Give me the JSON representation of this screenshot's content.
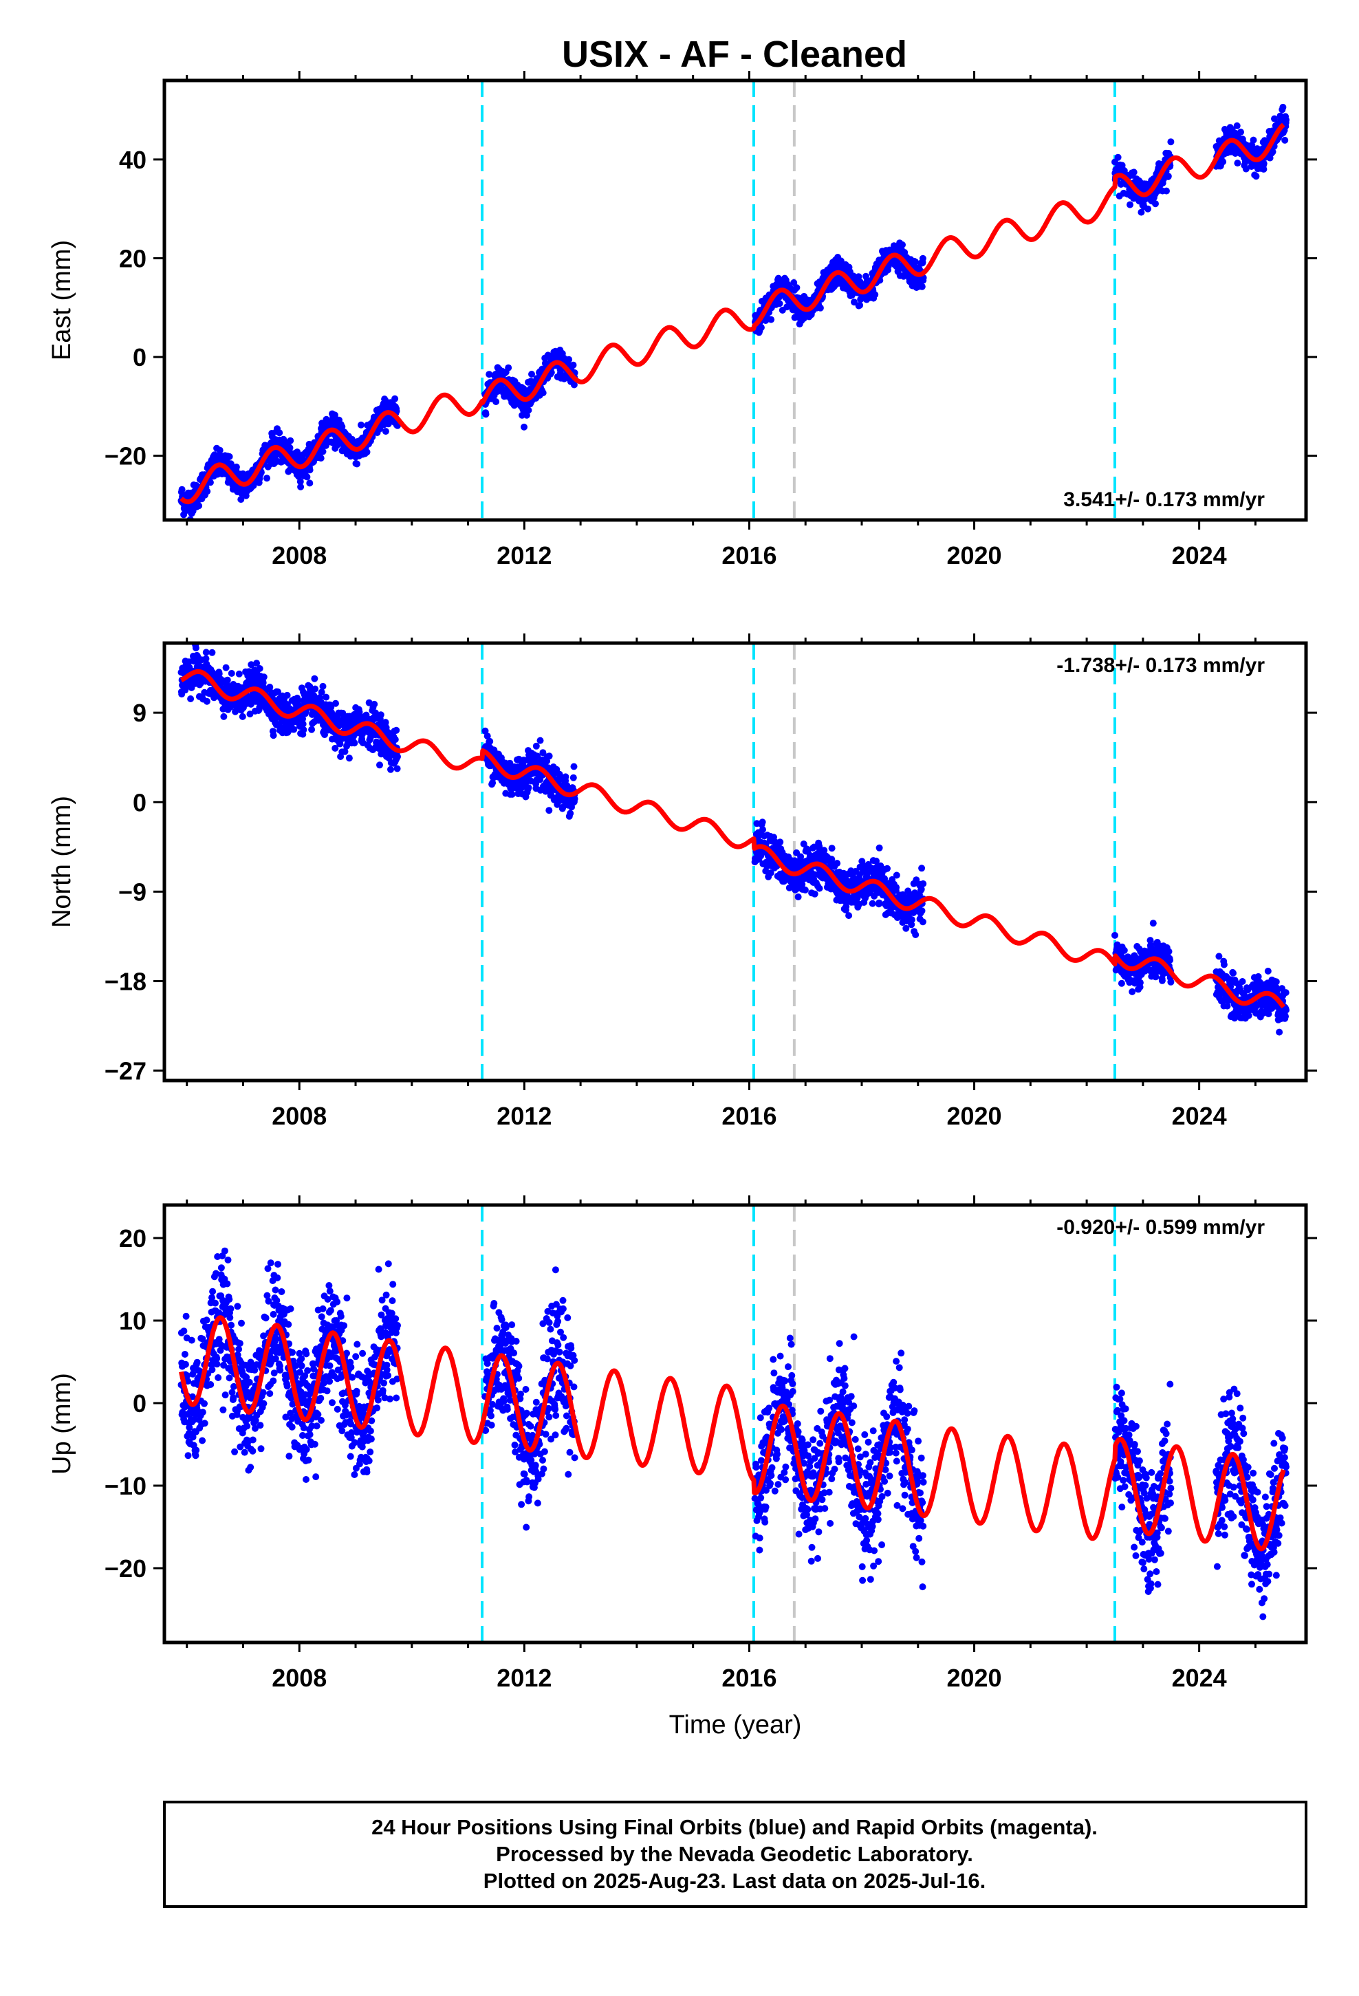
{
  "title": "USIX  - AF - Cleaned",
  "footer": {
    "lines": [
      "24 Hour Positions Using Final Orbits (blue) and Rapid Orbits (magenta).",
      "Processed by the Nevada Geodetic Laboratory.",
      "Plotted on 2025-Aug-23. Last data on 2025-Jul-16."
    ]
  },
  "colors": {
    "points": "#0000ff",
    "model": "#ff0000",
    "equipment_change": "#00e5ff",
    "other_event": "#c8c8c8",
    "frame": "#000000"
  },
  "chart_data": [
    {
      "type": "scatter",
      "panel": "east",
      "ylabel": "East (mm)",
      "xlabel": "",
      "xlim": [
        2005.6,
        2025.9
      ],
      "ylim": [
        -33,
        56
      ],
      "xticks": [
        2008,
        2012,
        2016,
        2020,
        2024
      ],
      "yticks": [
        -20,
        0,
        20,
        40
      ],
      "rate_label": "3.541+/- 0.173 mm/yr",
      "rate_position": "bottom-right",
      "event_lines": [
        {
          "x": 2011.25,
          "kind": "equipment"
        },
        {
          "x": 2016.08,
          "kind": "equipment"
        },
        {
          "x": 2016.8,
          "kind": "other"
        },
        {
          "x": 2022.5,
          "kind": "equipment"
        }
      ],
      "model": {
        "start": 2005.9,
        "end": 2025.5,
        "base": -27,
        "rate": 3.54,
        "amp": 2.8,
        "phase": 0.3,
        "offsets": [
          {
            "t": 2011.25,
            "dy": -0.5
          },
          {
            "t": 2016.08,
            "dy": 0.5
          },
          {
            "t": 2022.5,
            "dy": 2.0
          }
        ]
      },
      "data_segments": [
        [
          2005.9,
          2009.75
        ],
        [
          2011.3,
          2012.9
        ],
        [
          2016.1,
          2019.1
        ],
        [
          2022.5,
          2023.5
        ],
        [
          2024.3,
          2025.55
        ]
      ],
      "scatter_sd": 1.4
    },
    {
      "type": "scatter",
      "panel": "north",
      "ylabel": "North (mm)",
      "xlabel": "",
      "xlim": [
        2005.6,
        2025.9
      ],
      "ylim": [
        -28,
        16
      ],
      "xticks": [
        2008,
        2012,
        2016,
        2020,
        2024
      ],
      "yticks": [
        -27,
        -18,
        -9,
        0,
        9
      ],
      "rate_label": "-1.738+/- 0.173 mm/yr",
      "rate_position": "top-right",
      "event_lines": [
        {
          "x": 2011.25,
          "kind": "equipment"
        },
        {
          "x": 2016.08,
          "kind": "equipment"
        },
        {
          "x": 2016.8,
          "kind": "other"
        },
        {
          "x": 2022.5,
          "kind": "equipment"
        }
      ],
      "model": {
        "start": 2005.9,
        "end": 2025.5,
        "base": 12.8,
        "rate": -1.74,
        "amp": 0.9,
        "phase": 0.0,
        "offsets": [
          {
            "t": 2011.25,
            "dy": 0.8
          },
          {
            "t": 2016.08,
            "dy": -1.0
          },
          {
            "t": 2022.5,
            "dy": 0.9
          }
        ]
      },
      "data_segments": [
        [
          2005.9,
          2009.75
        ],
        [
          2011.3,
          2012.9
        ],
        [
          2016.1,
          2019.1
        ],
        [
          2022.5,
          2023.5
        ],
        [
          2024.3,
          2025.55
        ]
      ],
      "scatter_sd": 1.0
    },
    {
      "type": "scatter",
      "panel": "up",
      "ylabel": "Up (mm)",
      "xlabel": "Time (year)",
      "xlim": [
        2005.6,
        2025.9
      ],
      "ylim": [
        -29,
        24
      ],
      "xticks": [
        2008,
        2012,
        2016,
        2020,
        2024
      ],
      "yticks": [
        -20,
        -10,
        0,
        10,
        20
      ],
      "rate_label": "-0.920+/- 0.599 mm/yr",
      "rate_position": "top-right",
      "event_lines": [
        {
          "x": 2011.25,
          "kind": "equipment"
        },
        {
          "x": 2016.08,
          "kind": "equipment"
        },
        {
          "x": 2016.8,
          "kind": "other"
        },
        {
          "x": 2022.5,
          "kind": "equipment"
        }
      ],
      "model": {
        "start": 2005.9,
        "end": 2025.5,
        "base": 5.5,
        "rate": -0.92,
        "amp": 5.5,
        "phase": 0.35,
        "offsets": [
          {
            "t": 2016.08,
            "dy": -1.5
          },
          {
            "t": 2022.5,
            "dy": 1.5
          }
        ]
      },
      "data_segments": [
        [
          2005.9,
          2009.75
        ],
        [
          2011.3,
          2012.9
        ],
        [
          2016.1,
          2019.1
        ],
        [
          2022.5,
          2023.5
        ],
        [
          2024.3,
          2025.55
        ]
      ],
      "scatter_sd": 3.6
    }
  ]
}
